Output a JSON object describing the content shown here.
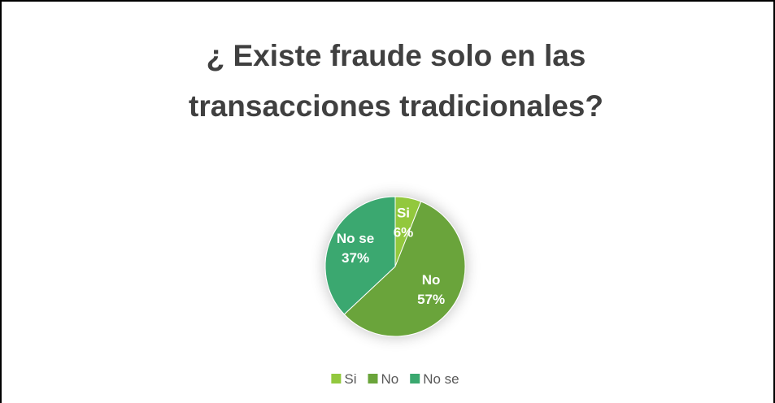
{
  "chart_data": {
    "type": "pie",
    "title": "¿ Existe fraude solo en las transacciones tradicionales?",
    "categories": [
      "Si",
      "No",
      "No se"
    ],
    "values": [
      6,
      57,
      37
    ],
    "value_labels": [
      "6%",
      "57%",
      "37%"
    ],
    "colors": [
      "#92c83e",
      "#6aa43a",
      "#3aa86f"
    ],
    "legend": "bottom"
  }
}
